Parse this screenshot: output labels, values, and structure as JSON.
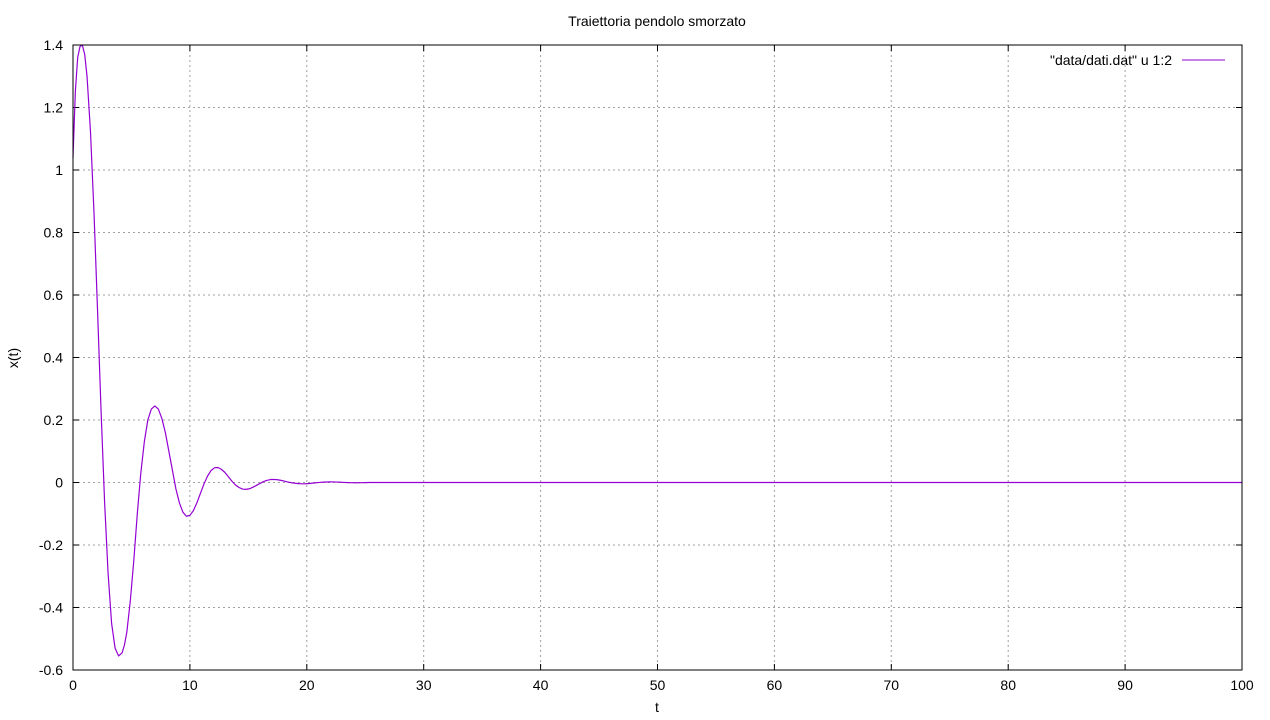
{
  "chart_data": {
    "type": "line",
    "title": "Traiettoria pendolo smorzato",
    "xlabel": "t",
    "ylabel": "x(t)",
    "xlim": [
      0,
      100
    ],
    "ylim": [
      -0.6,
      1.4
    ],
    "xticks": [
      "0",
      "10",
      "20",
      "30",
      "40",
      "50",
      "60",
      "70",
      "80",
      "90",
      "100"
    ],
    "yticks": [
      "-0.6",
      "-0.4",
      "-0.2",
      "0",
      "0.2",
      "0.4",
      "0.6",
      "0.8",
      "1",
      "1.2",
      "1.4"
    ],
    "grid": true,
    "legend_position": "top-right",
    "series": [
      {
        "name": "\"data/dati.dat\" u 1:2",
        "color": "#9400d3",
        "x": [
          0,
          0.2,
          0.4,
          0.6,
          0.8,
          1.0,
          1.2,
          1.5,
          1.8,
          2.1,
          2.4,
          2.7,
          3.0,
          3.3,
          3.6,
          3.9,
          4.2,
          4.4,
          4.6,
          4.9,
          5.2,
          5.5,
          5.8,
          6.1,
          6.4,
          6.7,
          7.0,
          7.3,
          7.6,
          7.9,
          8.2,
          8.5,
          8.8,
          9.1,
          9.4,
          9.7,
          10.0,
          10.3,
          10.6,
          10.9,
          11.2,
          11.5,
          11.8,
          12.1,
          12.4,
          12.7,
          13.0,
          13.3,
          13.6,
          13.9,
          14.2,
          14.5,
          14.8,
          15.1,
          15.4,
          15.7,
          16.0,
          16.3,
          16.6,
          16.9,
          17.2,
          17.5,
          17.8,
          18.1,
          18.4,
          18.7,
          19.0,
          19.3,
          19.6,
          19.9,
          20.2,
          20.5,
          20.8,
          21.1,
          21.4,
          21.7,
          22.0,
          22.3,
          22.6,
          22.9,
          23.2,
          23.5,
          23.8,
          24.1,
          24.4,
          24.7,
          25.0,
          25.3,
          25.6,
          26.0,
          30,
          40,
          50,
          60,
          70,
          80,
          90,
          100
        ],
        "y": [
          1.04,
          1.25,
          1.36,
          1.395,
          1.4,
          1.37,
          1.3,
          1.12,
          0.86,
          0.55,
          0.23,
          -0.06,
          -0.29,
          -0.45,
          -0.53,
          -0.555,
          -0.545,
          -0.52,
          -0.48,
          -0.38,
          -0.25,
          -0.1,
          0.03,
          0.13,
          0.2,
          0.235,
          0.245,
          0.235,
          0.205,
          0.16,
          0.1,
          0.04,
          -0.02,
          -0.065,
          -0.095,
          -0.108,
          -0.105,
          -0.09,
          -0.065,
          -0.035,
          -0.005,
          0.02,
          0.038,
          0.047,
          0.048,
          0.042,
          0.032,
          0.018,
          0.004,
          -0.008,
          -0.016,
          -0.021,
          -0.022,
          -0.02,
          -0.015,
          -0.009,
          -0.003,
          0.003,
          0.007,
          0.0095,
          0.0098,
          0.0088,
          0.0068,
          0.0042,
          0.0015,
          -0.0008,
          -0.0025,
          -0.0035,
          -0.0042,
          -0.004,
          -0.0032,
          -0.002,
          -0.0008,
          0.0003,
          0.0012,
          0.0017,
          0.0019,
          0.0018,
          0.0014,
          0.0008,
          0.0002,
          -0.0003,
          -0.0006,
          -0.0008,
          -0.0008,
          -0.0006,
          -0.0003,
          0,
          0.0001,
          0,
          0,
          0,
          0,
          0,
          0,
          0,
          0,
          0
        ]
      }
    ]
  }
}
